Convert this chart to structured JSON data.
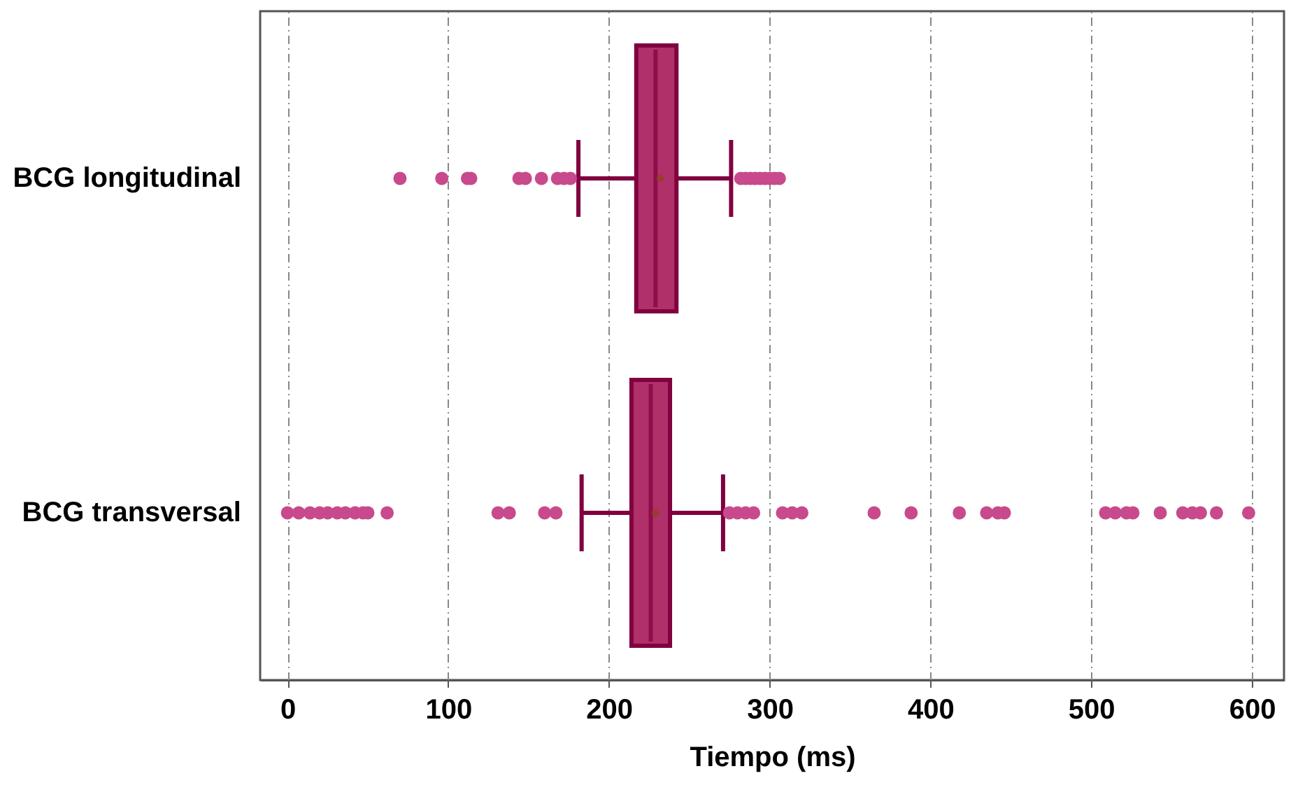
{
  "chart_data": {
    "type": "box",
    "orientation": "horizontal",
    "xlabel": "Tiempo (ms)",
    "categories": [
      "BCG longitudinal",
      "BCG transversal"
    ],
    "xlim": [
      -17,
      620
    ],
    "xticks": [
      0,
      100,
      200,
      300,
      400,
      500,
      600
    ],
    "grid": "x",
    "series": [
      {
        "color": "#b0306a",
        "boxes": [
          {
            "low": 181,
            "q1": 217,
            "median": 229,
            "q3": 242,
            "high": 276,
            "mean": 232,
            "outliers": [
              70,
              96,
              112,
              114,
              144,
              148,
              158,
              168,
              172,
              176,
              282,
              285,
              288,
              291,
              294,
              297,
              300,
              303,
              306
            ]
          },
          {
            "low": 183,
            "q1": 214,
            "median": 226,
            "q3": 238,
            "high": 271,
            "mean": 229,
            "outliers": [
              0,
              7,
              14,
              20,
              25,
              31,
              36,
              42,
              47,
              50,
              62,
              131,
              138,
              160,
              167,
              275,
              280,
              285,
              290,
              308,
              314,
              320,
              365,
              388,
              418,
              435,
              442,
              446,
              509,
              515,
              522,
              526,
              543,
              557,
              563,
              568,
              578,
              598
            ]
          }
        ]
      }
    ]
  }
}
